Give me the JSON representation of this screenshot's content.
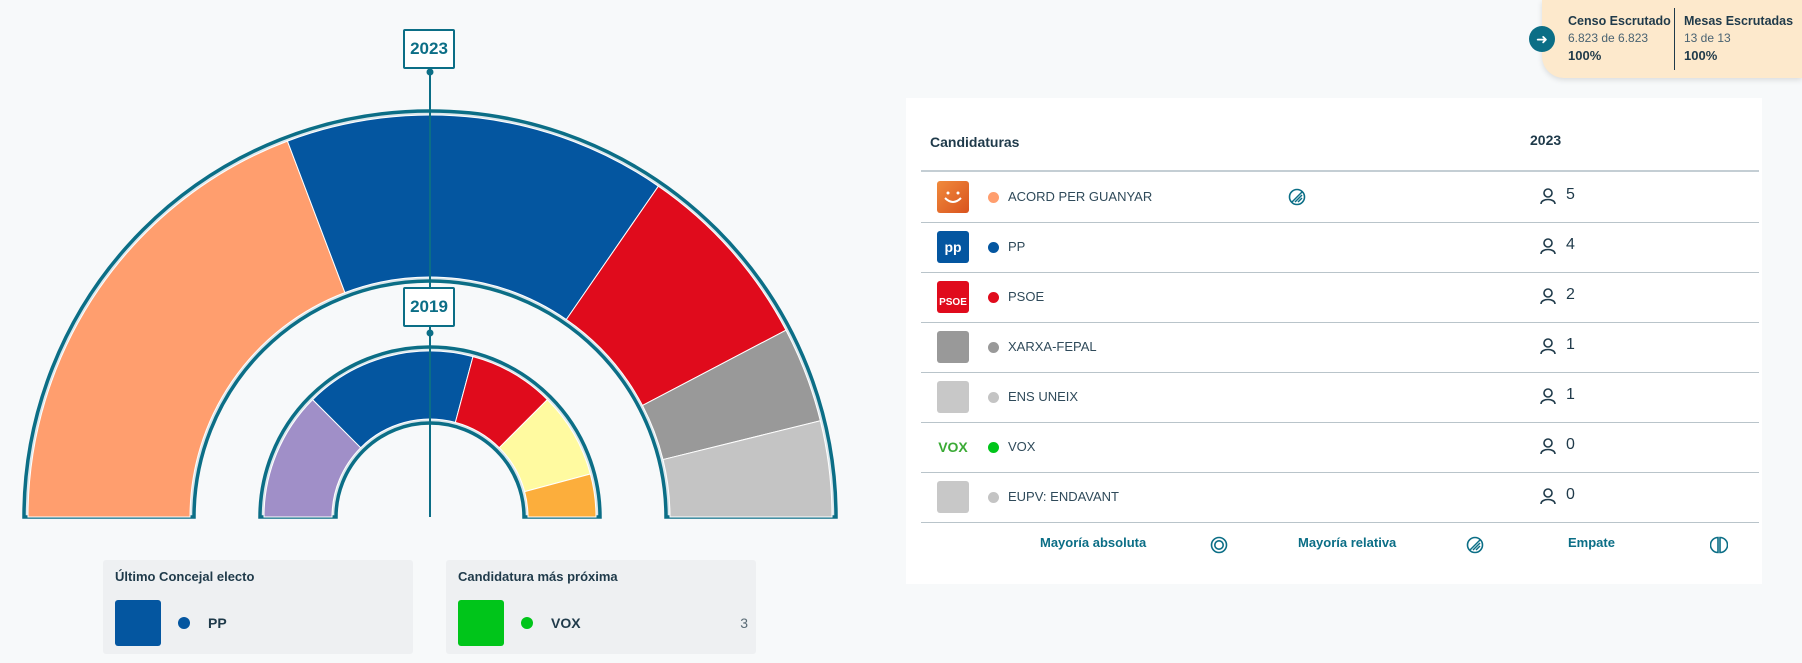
{
  "chart_data": {
    "type": "parliament-hemicycle",
    "rings": [
      {
        "year": "2023",
        "segments": [
          {
            "party": "ACORD PER GUANYAR",
            "seats": 5,
            "color": "#ff9e6e"
          },
          {
            "party": "PP",
            "seats": 4,
            "color": "#0456a0"
          },
          {
            "party": "PSOE",
            "seats": 2,
            "color": "#e00b1c"
          },
          {
            "party": "XARXA-FEPAL",
            "seats": 1,
            "color": "#999999"
          },
          {
            "party": "ENS UNEIX",
            "seats": 1,
            "color": "#c4c4c4"
          }
        ]
      },
      {
        "year": "2019",
        "segments": [
          {
            "party": "",
            "seats": 3,
            "color": "#a08fc8"
          },
          {
            "party": "PP",
            "seats": 4,
            "color": "#0456a0"
          },
          {
            "party": "PSOE",
            "seats": 2,
            "color": "#e00b1c"
          },
          {
            "party": "",
            "seats": 2,
            "color": "#fffaa0"
          },
          {
            "party": "",
            "seats": 1,
            "color": "#fcae3c"
          }
        ]
      }
    ]
  },
  "years": {
    "outer": "2023",
    "inner": "2019"
  },
  "ultimo_concejal": {
    "title": "Último Concejal electo",
    "party": "PP",
    "color": "#0456a0"
  },
  "candidatura_proxima": {
    "title": "Candidatura más próxima",
    "party": "VOX",
    "color": "#00c51a",
    "value": "3"
  },
  "escrutinio": {
    "censo_label": "Censo Escrutado",
    "censo_detail": "6.823 de 6.823",
    "censo_pct": "100%",
    "mesas_label": "Mesas Escrutadas",
    "mesas_detail": "13 de 13",
    "mesas_pct": "100%"
  },
  "table": {
    "header_party": "Candidaturas",
    "header_year": "2023",
    "rows": [
      {
        "name": "ACORD PER GUANYAR",
        "color": "#ff9e6e",
        "logo": "acord",
        "seats": "5",
        "mayoria": "relativa"
      },
      {
        "name": "PP",
        "color": "#0456a0",
        "logo": "pp",
        "seats": "4",
        "mayoria": ""
      },
      {
        "name": "PSOE",
        "color": "#e00b1c",
        "logo": "psoe",
        "seats": "2",
        "mayoria": ""
      },
      {
        "name": "XARXA-FEPAL",
        "color": "#999999",
        "logo": "grey",
        "seats": "1",
        "mayoria": ""
      },
      {
        "name": "ENS UNEIX",
        "color": "#c4c4c4",
        "logo": "lightgrey",
        "seats": "1",
        "mayoria": ""
      },
      {
        "name": "VOX",
        "color": "#00c51a",
        "logo": "vox",
        "seats": "0",
        "mayoria": ""
      },
      {
        "name": "EUPV: ENDAVANT",
        "color": "#c4c4c4",
        "logo": "lightgrey2",
        "seats": "0",
        "mayoria": ""
      }
    ],
    "logo_text": {
      "pp": "pp",
      "psoe": "PSOE",
      "vox": "VOX"
    }
  },
  "legend": {
    "absoluta": "Mayoría absoluta",
    "relativa": "Mayoría relativa",
    "empate": "Empate"
  }
}
